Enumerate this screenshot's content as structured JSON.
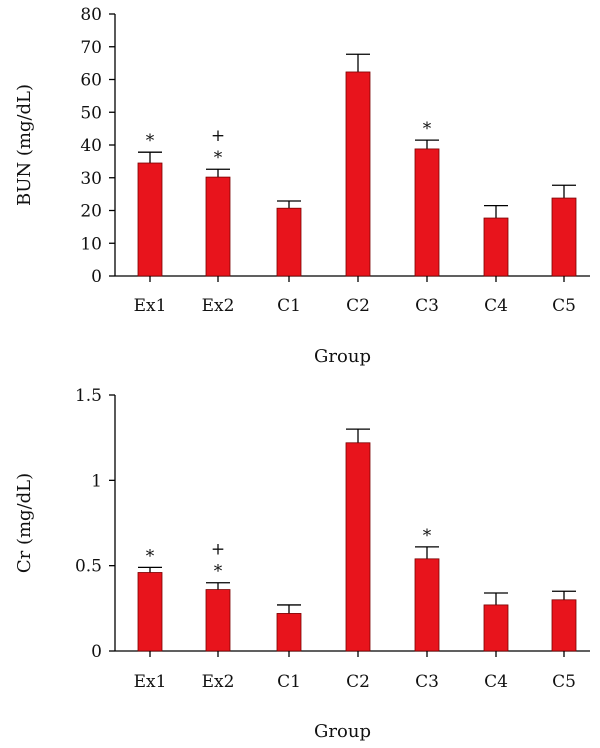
{
  "chart_data": [
    {
      "type": "bar",
      "categories": [
        "Ex1",
        "Ex2",
        "C1",
        "C2",
        "C3",
        "C4",
        "C5"
      ],
      "values": [
        34.5,
        30.2,
        20.7,
        62.3,
        38.8,
        17.7,
        23.8
      ],
      "errors": [
        3.3,
        2.4,
        2.2,
        5.4,
        2.7,
        3.8,
        3.9
      ],
      "markers": [
        [
          "*"
        ],
        [
          "*",
          "+"
        ],
        [],
        [],
        [
          "*"
        ],
        [],
        []
      ],
      "title": "",
      "xlabel": "Group",
      "ylabel": "BUN (mg/dL)",
      "ylim": [
        0,
        80
      ],
      "yticks": [
        0,
        10,
        20,
        30,
        40,
        50,
        60,
        70,
        80
      ],
      "ytick_labels": [
        "0",
        "10",
        "20",
        "30",
        "40",
        "50",
        "60",
        "70",
        "80"
      ],
      "bar_color": "#e8141c",
      "grid": false
    },
    {
      "type": "bar",
      "categories": [
        "Ex1",
        "Ex2",
        "C1",
        "C2",
        "C3",
        "C4",
        "C5"
      ],
      "values": [
        0.46,
        0.36,
        0.22,
        1.22,
        0.54,
        0.27,
        0.3
      ],
      "errors": [
        0.03,
        0.04,
        0.05,
        0.08,
        0.07,
        0.07,
        0.05
      ],
      "markers": [
        [
          "*"
        ],
        [
          "*",
          "+"
        ],
        [],
        [],
        [
          "*"
        ],
        [],
        []
      ],
      "title": "",
      "xlabel": "Group",
      "ylabel": "Cr (mg/dL)",
      "ylim": [
        0,
        1.5
      ],
      "yticks": [
        0,
        0.5,
        1,
        1.5
      ],
      "ytick_labels": [
        "0",
        "0.5",
        "1",
        "1.5"
      ],
      "bar_color": "#e8141c",
      "grid": false
    }
  ]
}
